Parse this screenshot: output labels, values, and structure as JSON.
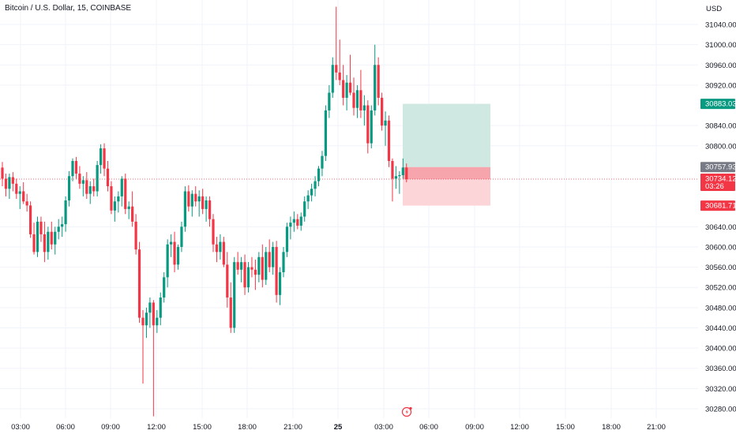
{
  "header": {
    "title": "Bitcoin / U.S. Dollar, 15, COINBASE"
  },
  "colors": {
    "up": "#089981",
    "down": "#f23645",
    "grid": "#f0f3fa",
    "text": "#131722",
    "target_fill": "#cfe9e2",
    "stop_fill": "#fbd5d8",
    "stop_fill_dark": "#f6a5ad"
  },
  "icons": {
    "alert": "flash-icon"
  },
  "chart_data": {
    "type": "candlestick",
    "symbol": "Bitcoin / U.S. Dollar",
    "interval": "15",
    "exchange": "COINBASE",
    "currency_label": "USD",
    "y_ticks": [
      31040,
      31000,
      30960,
      30920,
      30840,
      30800,
      30640,
      30600,
      30560,
      30520,
      30480,
      30440,
      30400,
      30360,
      30320,
      30280
    ],
    "ylim": [
      30262,
      31080
    ],
    "x_ticks": [
      "03:00",
      "06:00",
      "09:00",
      "12:00",
      "15:00",
      "18:00",
      "21:00",
      "25",
      "03:00",
      "06:00",
      "09:00",
      "12:00",
      "15:00",
      "18:00",
      "21:00"
    ],
    "price_badges": [
      {
        "label": "30883.03",
        "value": 30883.03,
        "color": "#089981"
      },
      {
        "label": "30757.93",
        "value": 30757.93,
        "color": "#787b86"
      },
      {
        "label": "30734.12",
        "sub": "03:26",
        "value": 30734.12,
        "color": "#f23645"
      },
      {
        "label": "30681.71",
        "value": 30681.71,
        "color": "#f23645"
      }
    ],
    "position_tool": {
      "type": "long",
      "target": 30883.03,
      "entry": 30757.93,
      "stop": 30681.71,
      "current": 30734.12
    },
    "candles": [
      [
        30757,
        30768,
        30720,
        30735
      ],
      [
        30735,
        30745,
        30700,
        30715
      ],
      [
        30715,
        30745,
        30695,
        30738
      ],
      [
        30738,
        30748,
        30710,
        30725
      ],
      [
        30725,
        30735,
        30695,
        30705
      ],
      [
        30705,
        30720,
        30675,
        30710
      ],
      [
        30710,
        30728,
        30685,
        30690
      ],
      [
        30690,
        30705,
        30670,
        30682
      ],
      [
        30682,
        30690,
        30618,
        30625
      ],
      [
        30625,
        30648,
        30585,
        30590
      ],
      [
        30590,
        30660,
        30580,
        30650
      ],
      [
        30650,
        30660,
        30610,
        30625
      ],
      [
        30625,
        30650,
        30570,
        30590
      ],
      [
        30590,
        30640,
        30575,
        30630
      ],
      [
        30630,
        30650,
        30595,
        30605
      ],
      [
        30605,
        30640,
        30585,
        30630
      ],
      [
        30630,
        30655,
        30615,
        30640
      ],
      [
        30640,
        30660,
        30620,
        30645
      ],
      [
        30645,
        30700,
        30630,
        30692
      ],
      [
        30692,
        30750,
        30680,
        30740
      ],
      [
        30740,
        30775,
        30730,
        30770
      ],
      [
        30770,
        30778,
        30735,
        30745
      ],
      [
        30745,
        30760,
        30715,
        30725
      ],
      [
        30725,
        30740,
        30700,
        30732
      ],
      [
        30732,
        30748,
        30695,
        30705
      ],
      [
        30705,
        30730,
        30685,
        30720
      ],
      [
        30720,
        30735,
        30700,
        30710
      ],
      [
        30710,
        30770,
        30700,
        30762
      ],
      [
        30762,
        30803,
        30745,
        30795
      ],
      [
        30795,
        30805,
        30740,
        30755
      ],
      [
        30755,
        30770,
        30710,
        30720
      ],
      [
        30720,
        30730,
        30665,
        30672
      ],
      [
        30672,
        30700,
        30650,
        30690
      ],
      [
        30690,
        30710,
        30668,
        30700
      ],
      [
        30700,
        30740,
        30680,
        30735
      ],
      [
        30735,
        30745,
        30665,
        30675
      ],
      [
        30675,
        30690,
        30655,
        30680
      ],
      [
        30680,
        30710,
        30640,
        30650
      ],
      [
        30650,
        30665,
        30585,
        30595
      ],
      [
        30595,
        30610,
        30450,
        30460
      ],
      [
        30460,
        30475,
        30330,
        30445
      ],
      [
        30445,
        30480,
        30420,
        30470
      ],
      [
        30470,
        30500,
        30440,
        30490
      ],
      [
        30490,
        30495,
        30265,
        30445
      ],
      [
        30445,
        30475,
        30430,
        30460
      ],
      [
        30460,
        30510,
        30445,
        30500
      ],
      [
        30500,
        30550,
        30490,
        30540
      ],
      [
        30540,
        30615,
        30520,
        30605
      ],
      [
        30605,
        30625,
        30580,
        30610
      ],
      [
        30610,
        30630,
        30550,
        30565
      ],
      [
        30565,
        30605,
        30555,
        30600
      ],
      [
        30600,
        30650,
        30590,
        30640
      ],
      [
        30640,
        30720,
        30630,
        30710
      ],
      [
        30710,
        30722,
        30670,
        30680
      ],
      [
        30680,
        30712,
        30660,
        30705
      ],
      [
        30705,
        30720,
        30680,
        30690
      ],
      [
        30690,
        30712,
        30660,
        30700
      ],
      [
        30700,
        30715,
        30665,
        30675
      ],
      [
        30675,
        30700,
        30650,
        30692
      ],
      [
        30692,
        30700,
        30640,
        30655
      ],
      [
        30655,
        30665,
        30590,
        30605
      ],
      [
        30605,
        30620,
        30570,
        30590
      ],
      [
        30590,
        30625,
        30575,
        30610
      ],
      [
        30610,
        30620,
        30560,
        30565
      ],
      [
        30565,
        30590,
        30480,
        30500
      ],
      [
        30500,
        30530,
        30430,
        30440
      ],
      [
        30440,
        30580,
        30430,
        30570
      ],
      [
        30570,
        30590,
        30545,
        30555
      ],
      [
        30555,
        30580,
        30530,
        30570
      ],
      [
        30570,
        30585,
        30505,
        30520
      ],
      [
        30520,
        30570,
        30510,
        30560
      ],
      [
        30560,
        30580,
        30540,
        30555
      ],
      [
        30555,
        30575,
        30515,
        30545
      ],
      [
        30545,
        30590,
        30530,
        30580
      ],
      [
        30580,
        30605,
        30520,
        30535
      ],
      [
        30535,
        30600,
        30525,
        30590
      ],
      [
        30590,
        30615,
        30550,
        30560
      ],
      [
        30560,
        30610,
        30545,
        30600
      ],
      [
        30600,
        30612,
        30490,
        30505
      ],
      [
        30505,
        30560,
        30485,
        30550
      ],
      [
        30550,
        30600,
        30540,
        30590
      ],
      [
        30590,
        30648,
        30580,
        30640
      ],
      [
        30640,
        30660,
        30615,
        30648
      ],
      [
        30648,
        30670,
        30630,
        30655
      ],
      [
        30655,
        30665,
        30635,
        30642
      ],
      [
        30642,
        30668,
        30632,
        30660
      ],
      [
        30660,
        30700,
        30650,
        30690
      ],
      [
        30690,
        30712,
        30675,
        30702
      ],
      [
        30702,
        30725,
        30690,
        30715
      ],
      [
        30715,
        30740,
        30700,
        30730
      ],
      [
        30730,
        30760,
        30720,
        30755
      ],
      [
        30755,
        30790,
        30740,
        30780
      ],
      [
        30780,
        30880,
        30770,
        30870
      ],
      [
        30870,
        30920,
        30855,
        30905
      ],
      [
        30905,
        30975,
        30895,
        30960
      ],
      [
        30960,
        31075,
        30930,
        30945
      ],
      [
        30945,
        31010,
        30920,
        30930
      ],
      [
        30930,
        30960,
        30880,
        30895
      ],
      [
        30895,
        30940,
        30870,
        30925
      ],
      [
        30925,
        30980,
        30900,
        30905
      ],
      [
        30905,
        30935,
        30860,
        30875
      ],
      [
        30875,
        30920,
        30855,
        30910
      ],
      [
        30910,
        30950,
        30855,
        30870
      ],
      [
        30870,
        30900,
        30840,
        30880
      ],
      [
        30880,
        30890,
        30785,
        30805
      ],
      [
        30805,
        30880,
        30795,
        30870
      ],
      [
        30870,
        31000,
        30860,
        30960
      ],
      [
        30960,
        30975,
        30880,
        30895
      ],
      [
        30895,
        30905,
        30830,
        30840
      ],
      [
        30840,
        30868,
        30800,
        30850
      ],
      [
        30850,
        30860,
        30758,
        30770
      ],
      [
        30770,
        30775,
        30690,
        30735
      ],
      [
        30735,
        30760,
        30715,
        30740
      ],
      [
        30740,
        30750,
        30705,
        30742
      ],
      [
        30742,
        30775,
        30735,
        30757
      ],
      [
        30757,
        30765,
        30728,
        30734
      ]
    ]
  }
}
